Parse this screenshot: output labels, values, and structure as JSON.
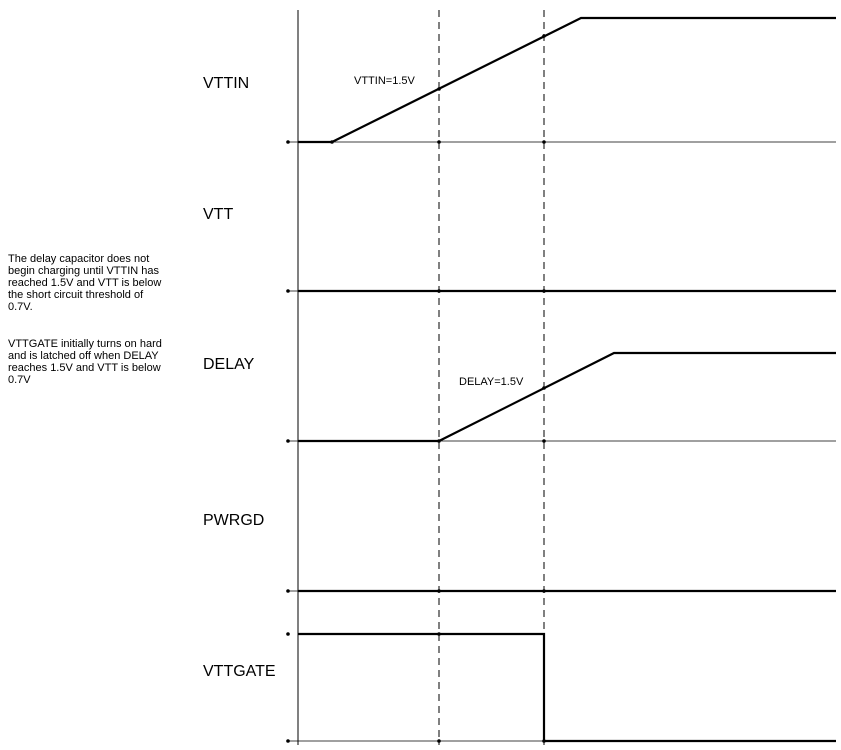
{
  "diagram": {
    "type": "timing-diagram",
    "colors": {
      "line": "#000000",
      "background": "#ffffff"
    }
  },
  "signals": [
    {
      "name": "VTTIN",
      "annotation": "VTTIN=1.5V"
    },
    {
      "name": "VTT",
      "annotation": ""
    },
    {
      "name": "DELAY",
      "annotation": "DELAY=1.5V"
    },
    {
      "name": "PWRGD",
      "annotation": ""
    },
    {
      "name": "VTTGATE",
      "annotation": ""
    }
  ],
  "notes": [
    {
      "lines": [
        "The delay capacitor does not",
        "begin charging until VTTIN has",
        "reached 1.5V and VTT is below",
        "the short circuit threshold of",
        "0.7V."
      ]
    },
    {
      "lines": [
        "VTTGATE initially turns on hard",
        "and is latched off when DELAY",
        "reaches 1.5V and VTT is below",
        "0.7V"
      ]
    }
  ]
}
